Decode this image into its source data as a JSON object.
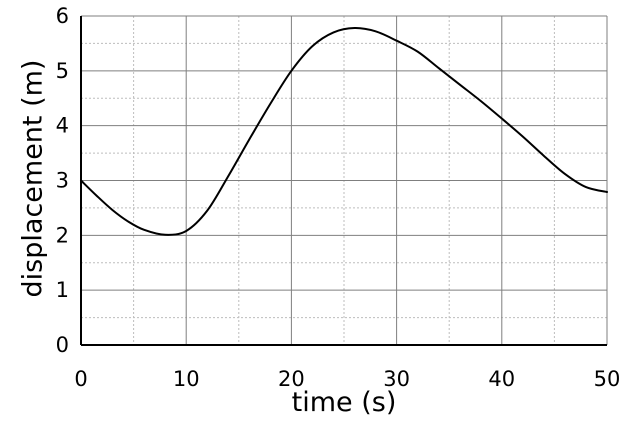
{
  "chart_data": {
    "type": "line",
    "title": "",
    "xlabel": "time (s)",
    "ylabel": "displacement (m)",
    "xlim": [
      0,
      50
    ],
    "ylim": [
      0,
      6
    ],
    "x_ticks": [
      0,
      10,
      20,
      30,
      40,
      50
    ],
    "y_ticks": [
      0,
      1,
      2,
      3,
      4,
      5,
      6
    ],
    "x_tick_labels": [
      "0",
      "10",
      "20",
      "30",
      "40",
      "50"
    ],
    "y_tick_labels": [
      "0",
      "1",
      "2",
      "3",
      "4",
      "5",
      "6"
    ],
    "grid": {
      "major": true,
      "minor": true,
      "major_color": "#7f7f7f",
      "minor_color": "#bdbdbd",
      "minor_style": "dotted"
    },
    "line_color": "#000000",
    "series": [
      {
        "x": [
          0,
          1.5,
          3,
          4.5,
          6,
          8,
          10,
          12,
          14,
          16,
          18,
          20,
          22,
          24,
          26,
          28,
          30,
          32,
          34,
          36,
          38,
          40,
          42,
          44,
          46,
          48,
          50
        ],
        "y": [
          3.0,
          2.72,
          2.46,
          2.25,
          2.1,
          2.01,
          2.08,
          2.45,
          3.08,
          3.75,
          4.4,
          5.0,
          5.45,
          5.7,
          5.78,
          5.72,
          5.55,
          5.35,
          5.05,
          4.75,
          4.45,
          4.13,
          3.8,
          3.45,
          3.12,
          2.88,
          2.79
        ]
      }
    ]
  }
}
